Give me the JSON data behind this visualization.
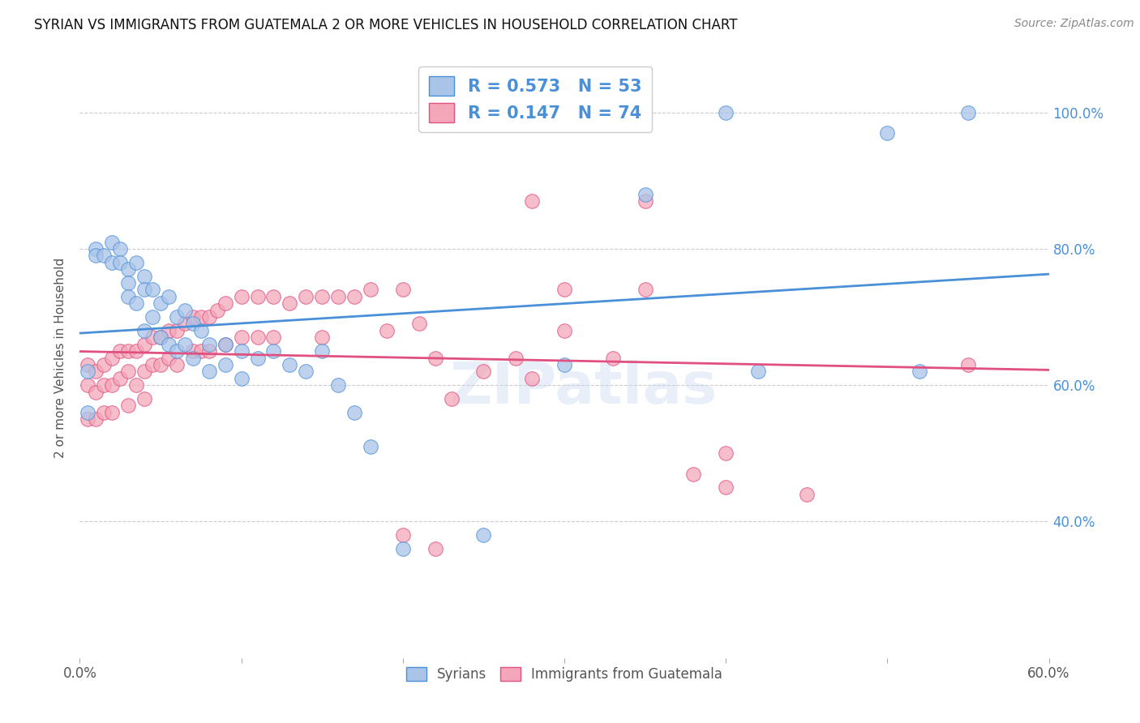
{
  "title": "SYRIAN VS IMMIGRANTS FROM GUATEMALA 2 OR MORE VEHICLES IN HOUSEHOLD CORRELATION CHART",
  "source": "Source: ZipAtlas.com",
  "ylabel_label": "2 or more Vehicles in Household",
  "legend_label1": "Syrians",
  "legend_label2": "Immigrants from Guatemala",
  "R1": 0.573,
  "N1": 53,
  "R2": 0.147,
  "N2": 74,
  "color_blue": "#aac4e8",
  "color_pink": "#f4a7b9",
  "line_color_blue": "#4a90d9",
  "line_color_pink": "#e05080",
  "watermark": "ZIPatlas",
  "xlim": [
    0.0,
    0.6
  ],
  "ylim": [
    0.2,
    1.08
  ],
  "syrians_x": [
    0.005,
    0.005,
    0.01,
    0.01,
    0.015,
    0.02,
    0.02,
    0.025,
    0.025,
    0.03,
    0.03,
    0.03,
    0.035,
    0.035,
    0.04,
    0.04,
    0.04,
    0.045,
    0.045,
    0.05,
    0.05,
    0.055,
    0.055,
    0.06,
    0.06,
    0.065,
    0.065,
    0.07,
    0.07,
    0.075,
    0.08,
    0.08,
    0.09,
    0.09,
    0.1,
    0.1,
    0.11,
    0.12,
    0.13,
    0.14,
    0.15,
    0.16,
    0.17,
    0.18,
    0.2,
    0.25,
    0.3,
    0.35,
    0.4,
    0.42,
    0.5,
    0.52,
    0.55
  ],
  "syrians_y": [
    0.62,
    0.56,
    0.8,
    0.79,
    0.79,
    0.81,
    0.78,
    0.8,
    0.78,
    0.77,
    0.75,
    0.73,
    0.78,
    0.72,
    0.76,
    0.74,
    0.68,
    0.74,
    0.7,
    0.72,
    0.67,
    0.73,
    0.66,
    0.7,
    0.65,
    0.71,
    0.66,
    0.69,
    0.64,
    0.68,
    0.66,
    0.62,
    0.66,
    0.63,
    0.65,
    0.61,
    0.64,
    0.65,
    0.63,
    0.62,
    0.65,
    0.6,
    0.56,
    0.51,
    0.36,
    0.38,
    0.63,
    0.88,
    1.0,
    0.62,
    0.97,
    0.62,
    1.0
  ],
  "guatemala_x": [
    0.005,
    0.005,
    0.005,
    0.01,
    0.01,
    0.01,
    0.015,
    0.015,
    0.015,
    0.02,
    0.02,
    0.02,
    0.025,
    0.025,
    0.03,
    0.03,
    0.03,
    0.035,
    0.035,
    0.04,
    0.04,
    0.04,
    0.045,
    0.045,
    0.05,
    0.05,
    0.055,
    0.055,
    0.06,
    0.06,
    0.065,
    0.07,
    0.07,
    0.075,
    0.075,
    0.08,
    0.08,
    0.085,
    0.09,
    0.09,
    0.1,
    0.1,
    0.11,
    0.11,
    0.12,
    0.12,
    0.13,
    0.14,
    0.15,
    0.15,
    0.16,
    0.17,
    0.18,
    0.19,
    0.2,
    0.21,
    0.22,
    0.23,
    0.25,
    0.27,
    0.28,
    0.3,
    0.33,
    0.35,
    0.38,
    0.4,
    0.28,
    0.3,
    0.2,
    0.22,
    0.35,
    0.4,
    0.45,
    0.55
  ],
  "guatemala_y": [
    0.63,
    0.6,
    0.55,
    0.62,
    0.59,
    0.55,
    0.63,
    0.6,
    0.56,
    0.64,
    0.6,
    0.56,
    0.65,
    0.61,
    0.65,
    0.62,
    0.57,
    0.65,
    0.6,
    0.66,
    0.62,
    0.58,
    0.67,
    0.63,
    0.67,
    0.63,
    0.68,
    0.64,
    0.68,
    0.63,
    0.69,
    0.7,
    0.65,
    0.7,
    0.65,
    0.7,
    0.65,
    0.71,
    0.72,
    0.66,
    0.73,
    0.67,
    0.73,
    0.67,
    0.73,
    0.67,
    0.72,
    0.73,
    0.73,
    0.67,
    0.73,
    0.73,
    0.74,
    0.68,
    0.74,
    0.69,
    0.64,
    0.58,
    0.62,
    0.64,
    0.61,
    0.68,
    0.64,
    0.74,
    0.47,
    0.45,
    0.87,
    0.74,
    0.38,
    0.36,
    0.87,
    0.5,
    0.44,
    0.63
  ]
}
